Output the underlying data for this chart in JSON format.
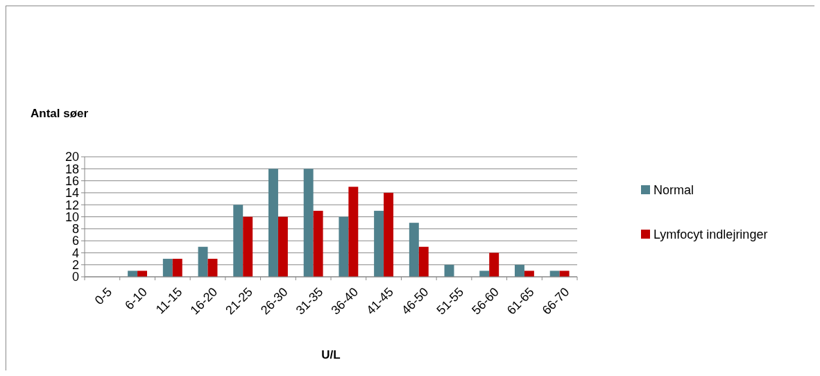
{
  "chart_data": {
    "type": "bar",
    "ylabel": "Antal søer",
    "xlabel": "U/L",
    "categories": [
      "0-5",
      "6-10",
      "11-15",
      "16-20",
      "21-25",
      "26-30",
      "31-35",
      "36-40",
      "41-45",
      "46-50",
      "51-55",
      "56-60",
      "61-65",
      "66-70"
    ],
    "series": [
      {
        "name": "Normal",
        "color": "#4f818d",
        "values": [
          0,
          1,
          3,
          5,
          12,
          18,
          18,
          10,
          11,
          9,
          2,
          1,
          2,
          1
        ]
      },
      {
        "name": "Lymfocyt indlejringer",
        "color": "#c00000",
        "values": [
          0,
          1,
          3,
          3,
          10,
          10,
          11,
          15,
          14,
          5,
          0,
          4,
          1,
          1
        ]
      }
    ],
    "ylim": [
      0,
      20
    ],
    "yticks": [
      0,
      2,
      4,
      6,
      8,
      10,
      12,
      14,
      16,
      18,
      20
    ],
    "grid": "y",
    "legend": "right"
  }
}
